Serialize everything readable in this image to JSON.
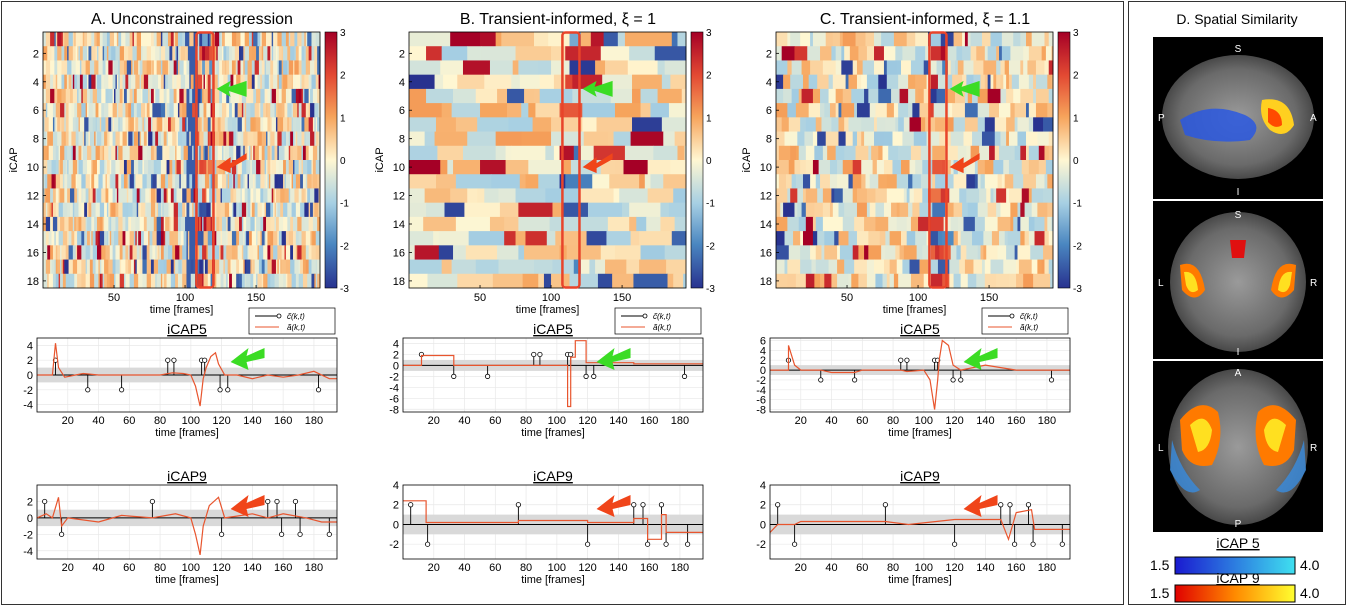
{
  "panels": {
    "A": {
      "title": "A. Unconstrained regression"
    },
    "B": {
      "title": "B. Transient-informed, ξ = 1"
    },
    "C": {
      "title": "C. Transient-informed, ξ = 1.1"
    },
    "D": {
      "title": "D. Spatial Similarity"
    }
  },
  "labels": {
    "icap_axis": "iCAP",
    "time_axis": "time [frames]",
    "icap5": "iCAP5",
    "icap9": "iCAP9",
    "legend_c": "c̃(k,t)",
    "legend_a": "ã(k,t)"
  },
  "colors": {
    "accent_box": "#e8442a",
    "green_arrow": "#3bdc24",
    "red_arrow": "#f0451a",
    "ts_line": "#e8552e",
    "band": "#d9d9d9"
  },
  "brain": {
    "sagittal": {
      "labels": [
        "S",
        "P",
        "A",
        "I"
      ]
    },
    "coronal": {
      "labels": [
        "S",
        "L",
        "R",
        "I"
      ]
    },
    "axial": {
      "labels": [
        "A",
        "L",
        "R",
        "P"
      ]
    },
    "colorbars": [
      {
        "name": "iCAP 5",
        "min": "1.5",
        "max": "4.0",
        "colors": [
          "#1a1ad0",
          "#3fe0f0"
        ]
      },
      {
        "name": "iCAP 9",
        "min": "1.5",
        "max": "4.0",
        "colors": [
          "#e00000",
          "#ffff30"
        ]
      }
    ]
  },
  "chart_data": [
    {
      "type": "heatmap",
      "panel": "A",
      "ylabel": "iCAP",
      "xlabel": "time [frames]",
      "y_ticks": [
        2,
        4,
        6,
        8,
        10,
        12,
        14,
        16,
        18
      ],
      "x_ticks": [
        50,
        100,
        150
      ],
      "xlim": [
        0,
        195
      ],
      "ylim": [
        1,
        18
      ],
      "colorbar_ticks": [
        3,
        2,
        1,
        0,
        -1,
        -2,
        -3
      ],
      "highlight_x_range": [
        108,
        120
      ]
    },
    {
      "type": "heatmap",
      "panel": "B",
      "ylabel": "iCAP",
      "xlabel": "time [frames]",
      "y_ticks": [
        2,
        4,
        6,
        8,
        10,
        12,
        14,
        16,
        18
      ],
      "x_ticks": [
        50,
        100,
        150
      ],
      "xlim": [
        0,
        195
      ],
      "ylim": [
        1,
        18
      ],
      "colorbar_ticks": [
        3,
        2,
        1,
        0,
        -1,
        -2,
        -3
      ],
      "highlight_x_range": [
        108,
        120
      ]
    },
    {
      "type": "heatmap",
      "panel": "C",
      "ylabel": "iCAP",
      "xlabel": "time [frames]",
      "y_ticks": [
        2,
        4,
        6,
        8,
        10,
        12,
        14,
        16,
        18
      ],
      "x_ticks": [
        50,
        100,
        150
      ],
      "xlim": [
        0,
        195
      ],
      "ylim": [
        1,
        18
      ],
      "colorbar_ticks": [
        3,
        2,
        1,
        0,
        -1,
        -2,
        -3
      ],
      "highlight_x_range": [
        108,
        120
      ]
    },
    {
      "type": "line",
      "panel": "A",
      "title": "iCAP5",
      "xlabel": "time [frames]",
      "xlim": [
        0,
        195
      ],
      "ylim": [
        -5,
        5
      ],
      "y_ticks": [
        -4,
        -2,
        0,
        2,
        4
      ],
      "x_ticks": [
        20,
        40,
        60,
        80,
        100,
        120,
        140,
        160,
        180
      ],
      "stems": [
        [
          12,
          2
        ],
        [
          33,
          -2
        ],
        [
          55,
          -2
        ],
        [
          85,
          2
        ],
        [
          89,
          2
        ],
        [
          107,
          2
        ],
        [
          109,
          2
        ],
        [
          119,
          -2
        ],
        [
          124,
          -2
        ],
        [
          183,
          -2
        ]
      ],
      "line": [
        [
          0,
          0
        ],
        [
          10,
          0
        ],
        [
          12,
          4.3
        ],
        [
          14,
          1
        ],
        [
          18,
          -0.3
        ],
        [
          25,
          0
        ],
        [
          30,
          0.2
        ],
        [
          40,
          0
        ],
        [
          50,
          0
        ],
        [
          60,
          0
        ],
        [
          70,
          0
        ],
        [
          80,
          0
        ],
        [
          88,
          0.3
        ],
        [
          95,
          0.2
        ],
        [
          100,
          0
        ],
        [
          103,
          -1.5
        ],
        [
          106,
          -4.2
        ],
        [
          108,
          -0.5
        ],
        [
          110,
          1
        ],
        [
          113,
          2.5
        ],
        [
          116,
          3
        ],
        [
          118,
          1.5
        ],
        [
          122,
          0
        ],
        [
          130,
          0
        ],
        [
          140,
          -0.5
        ],
        [
          150,
          0
        ],
        [
          160,
          -0.3
        ],
        [
          170,
          0
        ],
        [
          180,
          0.5
        ],
        [
          190,
          -0.5
        ],
        [
          195,
          -0.5
        ]
      ]
    },
    {
      "type": "line",
      "panel": "B",
      "title": "iCAP5",
      "xlabel": "time [frames]",
      "xlim": [
        0,
        195
      ],
      "ylim": [
        -8.5,
        5
      ],
      "y_ticks": [
        -8,
        -6,
        -4,
        -2,
        0,
        2,
        4
      ],
      "x_ticks": [
        20,
        40,
        60,
        80,
        100,
        120,
        140,
        160,
        180
      ],
      "stems": [
        [
          12,
          2
        ],
        [
          33,
          -2
        ],
        [
          55,
          -2
        ],
        [
          85,
          2
        ],
        [
          89,
          2
        ],
        [
          107,
          2
        ],
        [
          109,
          2
        ],
        [
          119,
          -2
        ],
        [
          124,
          -2
        ],
        [
          183,
          -2
        ]
      ],
      "line": [
        [
          0,
          0
        ],
        [
          12,
          0
        ],
        [
          12,
          1.8
        ],
        [
          33,
          1.8
        ],
        [
          33,
          0
        ],
        [
          107,
          0
        ],
        [
          107,
          -7.5
        ],
        [
          109,
          -7.5
        ],
        [
          109,
          1.5
        ],
        [
          112,
          1.5
        ],
        [
          112,
          4.5
        ],
        [
          119,
          4.5
        ],
        [
          119,
          0.5
        ],
        [
          150,
          0.5
        ],
        [
          150,
          0.3
        ],
        [
          195,
          0.3
        ]
      ]
    },
    {
      "type": "line",
      "panel": "C",
      "title": "iCAP5",
      "xlabel": "time [frames]",
      "xlim": [
        0,
        195
      ],
      "ylim": [
        -8.5,
        6.5
      ],
      "y_ticks": [
        -8,
        -6,
        -4,
        -2,
        0,
        2,
        4,
        6
      ],
      "x_ticks": [
        20,
        40,
        60,
        80,
        100,
        120,
        140,
        160,
        180
      ],
      "stems": [
        [
          12,
          2
        ],
        [
          33,
          -2
        ],
        [
          55,
          -2
        ],
        [
          85,
          2
        ],
        [
          89,
          2
        ],
        [
          107,
          2
        ],
        [
          109,
          2
        ],
        [
          119,
          -2
        ],
        [
          124,
          -2
        ],
        [
          183,
          -2
        ]
      ],
      "line": [
        [
          0,
          0
        ],
        [
          12,
          0
        ],
        [
          12,
          5
        ],
        [
          16,
          1
        ],
        [
          20,
          0
        ],
        [
          33,
          0
        ],
        [
          40,
          -0.5
        ],
        [
          55,
          -0.5
        ],
        [
          60,
          0
        ],
        [
          85,
          0
        ],
        [
          89,
          -0.3
        ],
        [
          100,
          0
        ],
        [
          104,
          -2
        ],
        [
          107,
          -8
        ],
        [
          109,
          -2
        ],
        [
          110,
          2
        ],
        [
          112,
          6
        ],
        [
          116,
          5
        ],
        [
          119,
          1
        ],
        [
          124,
          0
        ],
        [
          140,
          1
        ],
        [
          150,
          0.5
        ],
        [
          160,
          0
        ],
        [
          183,
          0
        ],
        [
          195,
          0
        ]
      ]
    },
    {
      "type": "line",
      "panel": "A",
      "title": "iCAP9",
      "xlabel": "time [frames]",
      "xlim": [
        0,
        195
      ],
      "ylim": [
        -5,
        4
      ],
      "y_ticks": [
        -4,
        -2,
        0,
        2
      ],
      "x_ticks": [
        20,
        40,
        60,
        80,
        100,
        120,
        140,
        160,
        180
      ],
      "stems": [
        [
          5,
          2
        ],
        [
          16,
          -2
        ],
        [
          75,
          2
        ],
        [
          120,
          -2
        ],
        [
          150,
          2
        ],
        [
          156,
          2
        ],
        [
          159,
          -2
        ],
        [
          168,
          2
        ],
        [
          171,
          -2
        ],
        [
          190,
          -2
        ]
      ],
      "line": [
        [
          0,
          0
        ],
        [
          6,
          0.5
        ],
        [
          10,
          0
        ],
        [
          14,
          2.5
        ],
        [
          16,
          -1
        ],
        [
          20,
          0
        ],
        [
          40,
          -0.5
        ],
        [
          55,
          0.3
        ],
        [
          75,
          0
        ],
        [
          90,
          0.5
        ],
        [
          100,
          0
        ],
        [
          103,
          -2
        ],
        [
          106,
          -4.5
        ],
        [
          108,
          -1
        ],
        [
          112,
          1.5
        ],
        [
          118,
          2.5
        ],
        [
          122,
          0
        ],
        [
          140,
          0.5
        ],
        [
          150,
          0
        ],
        [
          160,
          0.5
        ],
        [
          175,
          0
        ],
        [
          185,
          -0.5
        ],
        [
          195,
          -0.5
        ]
      ]
    },
    {
      "type": "line",
      "panel": "B",
      "title": "iCAP9",
      "xlabel": "time [frames]",
      "xlim": [
        0,
        195
      ],
      "ylim": [
        -3.5,
        4
      ],
      "y_ticks": [
        -2,
        0,
        2,
        4
      ],
      "x_ticks": [
        20,
        40,
        60,
        80,
        100,
        120,
        140,
        160,
        180
      ],
      "stems": [
        [
          5,
          2
        ],
        [
          16,
          -2
        ],
        [
          75,
          2
        ],
        [
          120,
          -2
        ],
        [
          150,
          2
        ],
        [
          156,
          2
        ],
        [
          159,
          -2
        ],
        [
          168,
          2
        ],
        [
          171,
          -2
        ],
        [
          185,
          -2
        ]
      ],
      "line": [
        [
          0,
          2.4
        ],
        [
          15,
          2.4
        ],
        [
          15,
          0.2
        ],
        [
          75,
          0.2
        ],
        [
          75,
          0.4
        ],
        [
          120,
          0.4
        ],
        [
          120,
          0.2
        ],
        [
          150,
          0.2
        ],
        [
          150,
          0.6
        ],
        [
          159,
          0.6
        ],
        [
          159,
          -1.5
        ],
        [
          168,
          -1.5
        ],
        [
          168,
          1
        ],
        [
          171,
          1
        ],
        [
          171,
          -0.8
        ],
        [
          195,
          -0.8
        ]
      ]
    },
    {
      "type": "line",
      "panel": "C",
      "title": "iCAP9",
      "xlabel": "time [frames]",
      "xlim": [
        0,
        195
      ],
      "ylim": [
        -3.5,
        4
      ],
      "y_ticks": [
        -2,
        0,
        2,
        4
      ],
      "x_ticks": [
        20,
        40,
        60,
        80,
        100,
        120,
        140,
        160,
        180
      ],
      "stems": [
        [
          5,
          2
        ],
        [
          16,
          -2
        ],
        [
          75,
          2
        ],
        [
          120,
          -2
        ],
        [
          150,
          2
        ],
        [
          156,
          2
        ],
        [
          159,
          -2
        ],
        [
          168,
          2
        ],
        [
          171,
          -2
        ],
        [
          190,
          -2
        ]
      ],
      "line": [
        [
          0,
          -0.8
        ],
        [
          5,
          0
        ],
        [
          16,
          0
        ],
        [
          20,
          0.3
        ],
        [
          75,
          0.3
        ],
        [
          90,
          0
        ],
        [
          120,
          0.5
        ],
        [
          150,
          0.5
        ],
        [
          155,
          -1.5
        ],
        [
          160,
          1.2
        ],
        [
          170,
          1.5
        ],
        [
          172,
          -0.5
        ],
        [
          195,
          -0.5
        ]
      ]
    }
  ]
}
